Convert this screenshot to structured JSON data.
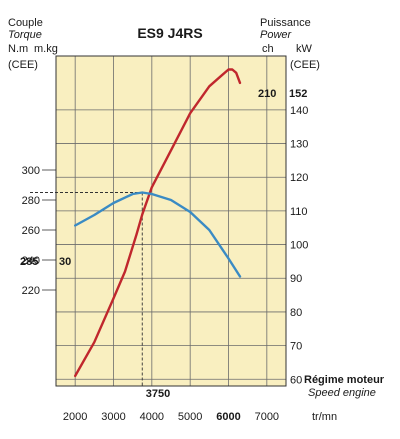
{
  "chart_data": {
    "type": "line",
    "title": "ES9 J4RS",
    "colors": {
      "background": "#f9efc0",
      "grid": "#6b6b6b",
      "power": "#c0272d",
      "torque": "#3a8bc4"
    },
    "left_axis": {
      "label_top": "Couple",
      "label_sub": "Torque",
      "unit_nm": "N.m",
      "unit_cee": "(CEE)",
      "unit_mkg": "m.kg",
      "ticks_nm": [
        "300",
        "280",
        "260",
        "240",
        "220"
      ],
      "ticks_mkg": [
        "30"
      ],
      "peak_nm_label": "285",
      "peak_mkg_label": "30",
      "range_nm": [
        156,
        376
      ]
    },
    "right_axis": {
      "label_top": "Puissance",
      "label_sub": "Power",
      "unit_ch": "ch",
      "unit_kw": "kW",
      "unit_cee": "(CEE)",
      "ticks_kw": [
        "140",
        "130",
        "120",
        "110",
        "100",
        "90",
        "80",
        "70",
        "60"
      ],
      "peak_ch_label": "210",
      "peak_kw_label": "152",
      "range_kw": [
        58,
        156
      ]
    },
    "x_axis": {
      "label": "Régime moteur",
      "label_sub": "Speed engine",
      "unit": "tr/mn",
      "ticks": [
        "2000",
        "3000",
        "4000",
        "5000",
        "6000",
        "7000"
      ],
      "range": [
        1500,
        7500
      ],
      "peak_torque_rpm_label": "3750"
    },
    "series": [
      {
        "key": "power_kw",
        "x": [
          2000,
          2500,
          3000,
          3300,
          3600,
          3750,
          4000,
          4500,
          5000,
          5500,
          5800,
          6000,
          6100,
          6200,
          6300
        ],
        "y": [
          61,
          71,
          84,
          92,
          103,
          109,
          117,
          128,
          139,
          147,
          150,
          152,
          152,
          151,
          148
        ]
      },
      {
        "key": "torque_nm",
        "x": [
          2000,
          2500,
          3000,
          3500,
          3750,
          4000,
          4500,
          5000,
          5500,
          6000,
          6300
        ],
        "y": [
          263,
          270,
          278,
          284,
          285,
          284,
          280,
          272,
          260,
          241,
          229
        ]
      }
    ]
  }
}
